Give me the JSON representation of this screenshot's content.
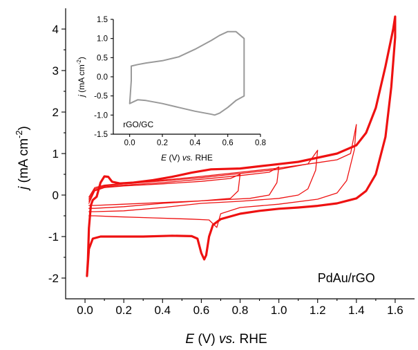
{
  "chart_data": [
    {
      "type": "line",
      "annotation": "PdAu/rGO",
      "xlabel_parts": {
        "symbol": "E",
        "unit": " (V) ",
        "vs": "vs.",
        "ref": " RHE"
      },
      "ylabel_parts": {
        "symbol": "j",
        "unit": " (mA cm",
        "sup": "-2",
        "close": ")"
      },
      "xlim": [
        -0.1,
        1.7
      ],
      "ylim": [
        -2.5,
        4.5
      ],
      "xticks": [
        "0.0",
        "0.2",
        "0.4",
        "0.6",
        "0.8",
        "1.0",
        "1.2",
        "1.4",
        "1.6"
      ],
      "xtick_values": [
        0,
        0.2,
        0.4,
        0.6,
        0.8,
        1.0,
        1.2,
        1.4,
        1.6
      ],
      "yticks": [
        "-2",
        "-1",
        "0",
        "1",
        "2",
        "3",
        "4"
      ],
      "ytick_values": [
        -2,
        -1,
        0,
        1,
        2,
        3,
        4
      ],
      "grid": false,
      "line_color": "#ee1111",
      "series": [
        {
          "upper_limit": 1.6,
          "emphasis": "bold",
          "points": [
            [
              0.01,
              -1.95
            ],
            [
              0.015,
              -1.55
            ],
            [
              0.02,
              -0.8
            ],
            [
              0.03,
              -0.25
            ],
            [
              0.04,
              -0.12
            ],
            [
              0.06,
              -0.04
            ],
            [
              0.08,
              0.3
            ],
            [
              0.1,
              0.45
            ],
            [
              0.12,
              0.44
            ],
            [
              0.14,
              0.32
            ],
            [
              0.18,
              0.28
            ],
            [
              0.25,
              0.3
            ],
            [
              0.35,
              0.36
            ],
            [
              0.45,
              0.44
            ],
            [
              0.55,
              0.54
            ],
            [
              0.65,
              0.62
            ],
            [
              0.8,
              0.64
            ],
            [
              0.95,
              0.72
            ],
            [
              1.1,
              0.8
            ],
            [
              1.2,
              0.9
            ],
            [
              1.3,
              1.0
            ],
            [
              1.4,
              1.2
            ],
            [
              1.45,
              1.5
            ],
            [
              1.5,
              2.1
            ],
            [
              1.55,
              3.1
            ],
            [
              1.59,
              4.0
            ],
            [
              1.6,
              4.3
            ],
            [
              1.6,
              3.8
            ],
            [
              1.58,
              2.6
            ],
            [
              1.55,
              1.4
            ],
            [
              1.5,
              0.5
            ],
            [
              1.45,
              0.1
            ],
            [
              1.4,
              -0.08
            ],
            [
              1.3,
              -0.2
            ],
            [
              1.2,
              -0.26
            ],
            [
              1.1,
              -0.3
            ],
            [
              1.0,
              -0.33
            ],
            [
              0.9,
              -0.38
            ],
            [
              0.8,
              -0.45
            ],
            [
              0.7,
              -0.58
            ],
            [
              0.66,
              -0.72
            ],
            [
              0.64,
              -1.0
            ],
            [
              0.625,
              -1.45
            ],
            [
              0.615,
              -1.55
            ],
            [
              0.6,
              -1.4
            ],
            [
              0.58,
              -1.05
            ],
            [
              0.55,
              -0.99
            ],
            [
              0.45,
              -0.98
            ],
            [
              0.3,
              -1.0
            ],
            [
              0.15,
              -1.0
            ],
            [
              0.08,
              -1.0
            ],
            [
              0.04,
              -1.05
            ],
            [
              0.02,
              -1.3
            ],
            [
              0.01,
              -1.95
            ]
          ]
        },
        {
          "upper_limit": 1.4,
          "emphasis": "thin",
          "points": [
            [
              0.02,
              -0.05
            ],
            [
              0.05,
              0.18
            ],
            [
              0.1,
              0.24
            ],
            [
              0.2,
              0.28
            ],
            [
              0.4,
              0.36
            ],
            [
              0.6,
              0.45
            ],
            [
              0.8,
              0.55
            ],
            [
              1.0,
              0.65
            ],
            [
              1.2,
              0.78
            ],
            [
              1.3,
              0.85
            ],
            [
              1.37,
              1.0
            ],
            [
              1.4,
              1.7
            ],
            [
              1.39,
              1.1
            ],
            [
              1.35,
              0.35
            ],
            [
              1.3,
              0.05
            ],
            [
              1.2,
              -0.1
            ],
            [
              1.0,
              -0.22
            ],
            [
              0.8,
              -0.3
            ],
            [
              0.7,
              -0.45
            ],
            [
              0.68,
              -0.78
            ],
            [
              0.64,
              -0.6
            ],
            [
              0.55,
              -0.58
            ],
            [
              0.35,
              -0.55
            ],
            [
              0.15,
              -0.52
            ],
            [
              0.05,
              -0.5
            ],
            [
              0.02,
              -0.5
            ]
          ]
        },
        {
          "upper_limit": 1.2,
          "emphasis": "thin",
          "points": [
            [
              0.02,
              -0.1
            ],
            [
              0.05,
              0.15
            ],
            [
              0.1,
              0.22
            ],
            [
              0.2,
              0.27
            ],
            [
              0.4,
              0.34
            ],
            [
              0.6,
              0.42
            ],
            [
              0.8,
              0.52
            ],
            [
              1.0,
              0.62
            ],
            [
              1.15,
              0.75
            ],
            [
              1.2,
              1.08
            ],
            [
              1.19,
              0.6
            ],
            [
              1.15,
              0.15
            ],
            [
              1.1,
              0.0
            ],
            [
              1.0,
              -0.08
            ],
            [
              0.8,
              -0.15
            ],
            [
              0.6,
              -0.2
            ],
            [
              0.4,
              -0.3
            ],
            [
              0.2,
              -0.38
            ],
            [
              0.05,
              -0.4
            ],
            [
              0.02,
              -0.4
            ]
          ]
        },
        {
          "upper_limit": 1.0,
          "emphasis": "thin",
          "points": [
            [
              0.02,
              -0.15
            ],
            [
              0.05,
              0.12
            ],
            [
              0.1,
              0.2
            ],
            [
              0.2,
              0.24
            ],
            [
              0.4,
              0.3
            ],
            [
              0.6,
              0.38
            ],
            [
              0.8,
              0.47
            ],
            [
              0.95,
              0.55
            ],
            [
              1.0,
              0.68
            ],
            [
              0.99,
              0.3
            ],
            [
              0.95,
              0.0
            ],
            [
              0.85,
              -0.08
            ],
            [
              0.6,
              -0.14
            ],
            [
              0.4,
              -0.2
            ],
            [
              0.2,
              -0.28
            ],
            [
              0.05,
              -0.32
            ],
            [
              0.02,
              -0.32
            ]
          ]
        },
        {
          "upper_limit": 0.8,
          "emphasis": "thin",
          "points": [
            [
              0.02,
              -0.2
            ],
            [
              0.05,
              0.1
            ],
            [
              0.1,
              0.18
            ],
            [
              0.2,
              0.22
            ],
            [
              0.4,
              0.27
            ],
            [
              0.6,
              0.33
            ],
            [
              0.75,
              0.4
            ],
            [
              0.8,
              0.5
            ],
            [
              0.79,
              0.1
            ],
            [
              0.75,
              -0.08
            ],
            [
              0.6,
              -0.14
            ],
            [
              0.4,
              -0.18
            ],
            [
              0.2,
              -0.22
            ],
            [
              0.05,
              -0.25
            ],
            [
              0.02,
              -0.25
            ]
          ]
        }
      ]
    },
    {
      "type": "line",
      "label": "rGO/GC",
      "xlabel_parts": {
        "symbol": "E",
        "unit": " (V) ",
        "vs": "vs.",
        "ref": " RHE"
      },
      "ylabel_parts": {
        "symbol": "j",
        "unit": " (mA cm",
        "sup": "-2",
        "close": ")"
      },
      "xlim": [
        -0.1,
        0.8
      ],
      "ylim": [
        -1.5,
        1.5
      ],
      "xticks": [
        "0.0",
        "0.2",
        "0.4",
        "0.6",
        "0.8"
      ],
      "xtick_values": [
        0,
        0.2,
        0.4,
        0.6,
        0.8
      ],
      "yticks": [
        "-1.5",
        "-1.0",
        "-0.5",
        "0.0",
        "0.5",
        "1.0",
        "1.5"
      ],
      "ytick_values": [
        -1.5,
        -1.0,
        -0.5,
        0.0,
        0.5,
        1.0,
        1.5
      ],
      "grid": false,
      "line_color": "#999999",
      "series": [
        {
          "points": [
            [
              0.0,
              -0.7
            ],
            [
              0.01,
              -0.1
            ],
            [
              0.01,
              0.28
            ],
            [
              0.05,
              0.32
            ],
            [
              0.1,
              0.36
            ],
            [
              0.2,
              0.42
            ],
            [
              0.3,
              0.52
            ],
            [
              0.4,
              0.72
            ],
            [
              0.5,
              0.95
            ],
            [
              0.55,
              1.08
            ],
            [
              0.6,
              1.18
            ],
            [
              0.65,
              1.18
            ],
            [
              0.7,
              1.0
            ],
            [
              0.7,
              0.3
            ],
            [
              0.7,
              -0.5
            ],
            [
              0.65,
              -0.62
            ],
            [
              0.6,
              -0.8
            ],
            [
              0.55,
              -0.95
            ],
            [
              0.52,
              -1.0
            ],
            [
              0.5,
              -0.98
            ],
            [
              0.4,
              -0.9
            ],
            [
              0.3,
              -0.8
            ],
            [
              0.2,
              -0.7
            ],
            [
              0.1,
              -0.62
            ],
            [
              0.05,
              -0.6
            ],
            [
              0.0,
              -0.7
            ]
          ]
        }
      ]
    }
  ]
}
